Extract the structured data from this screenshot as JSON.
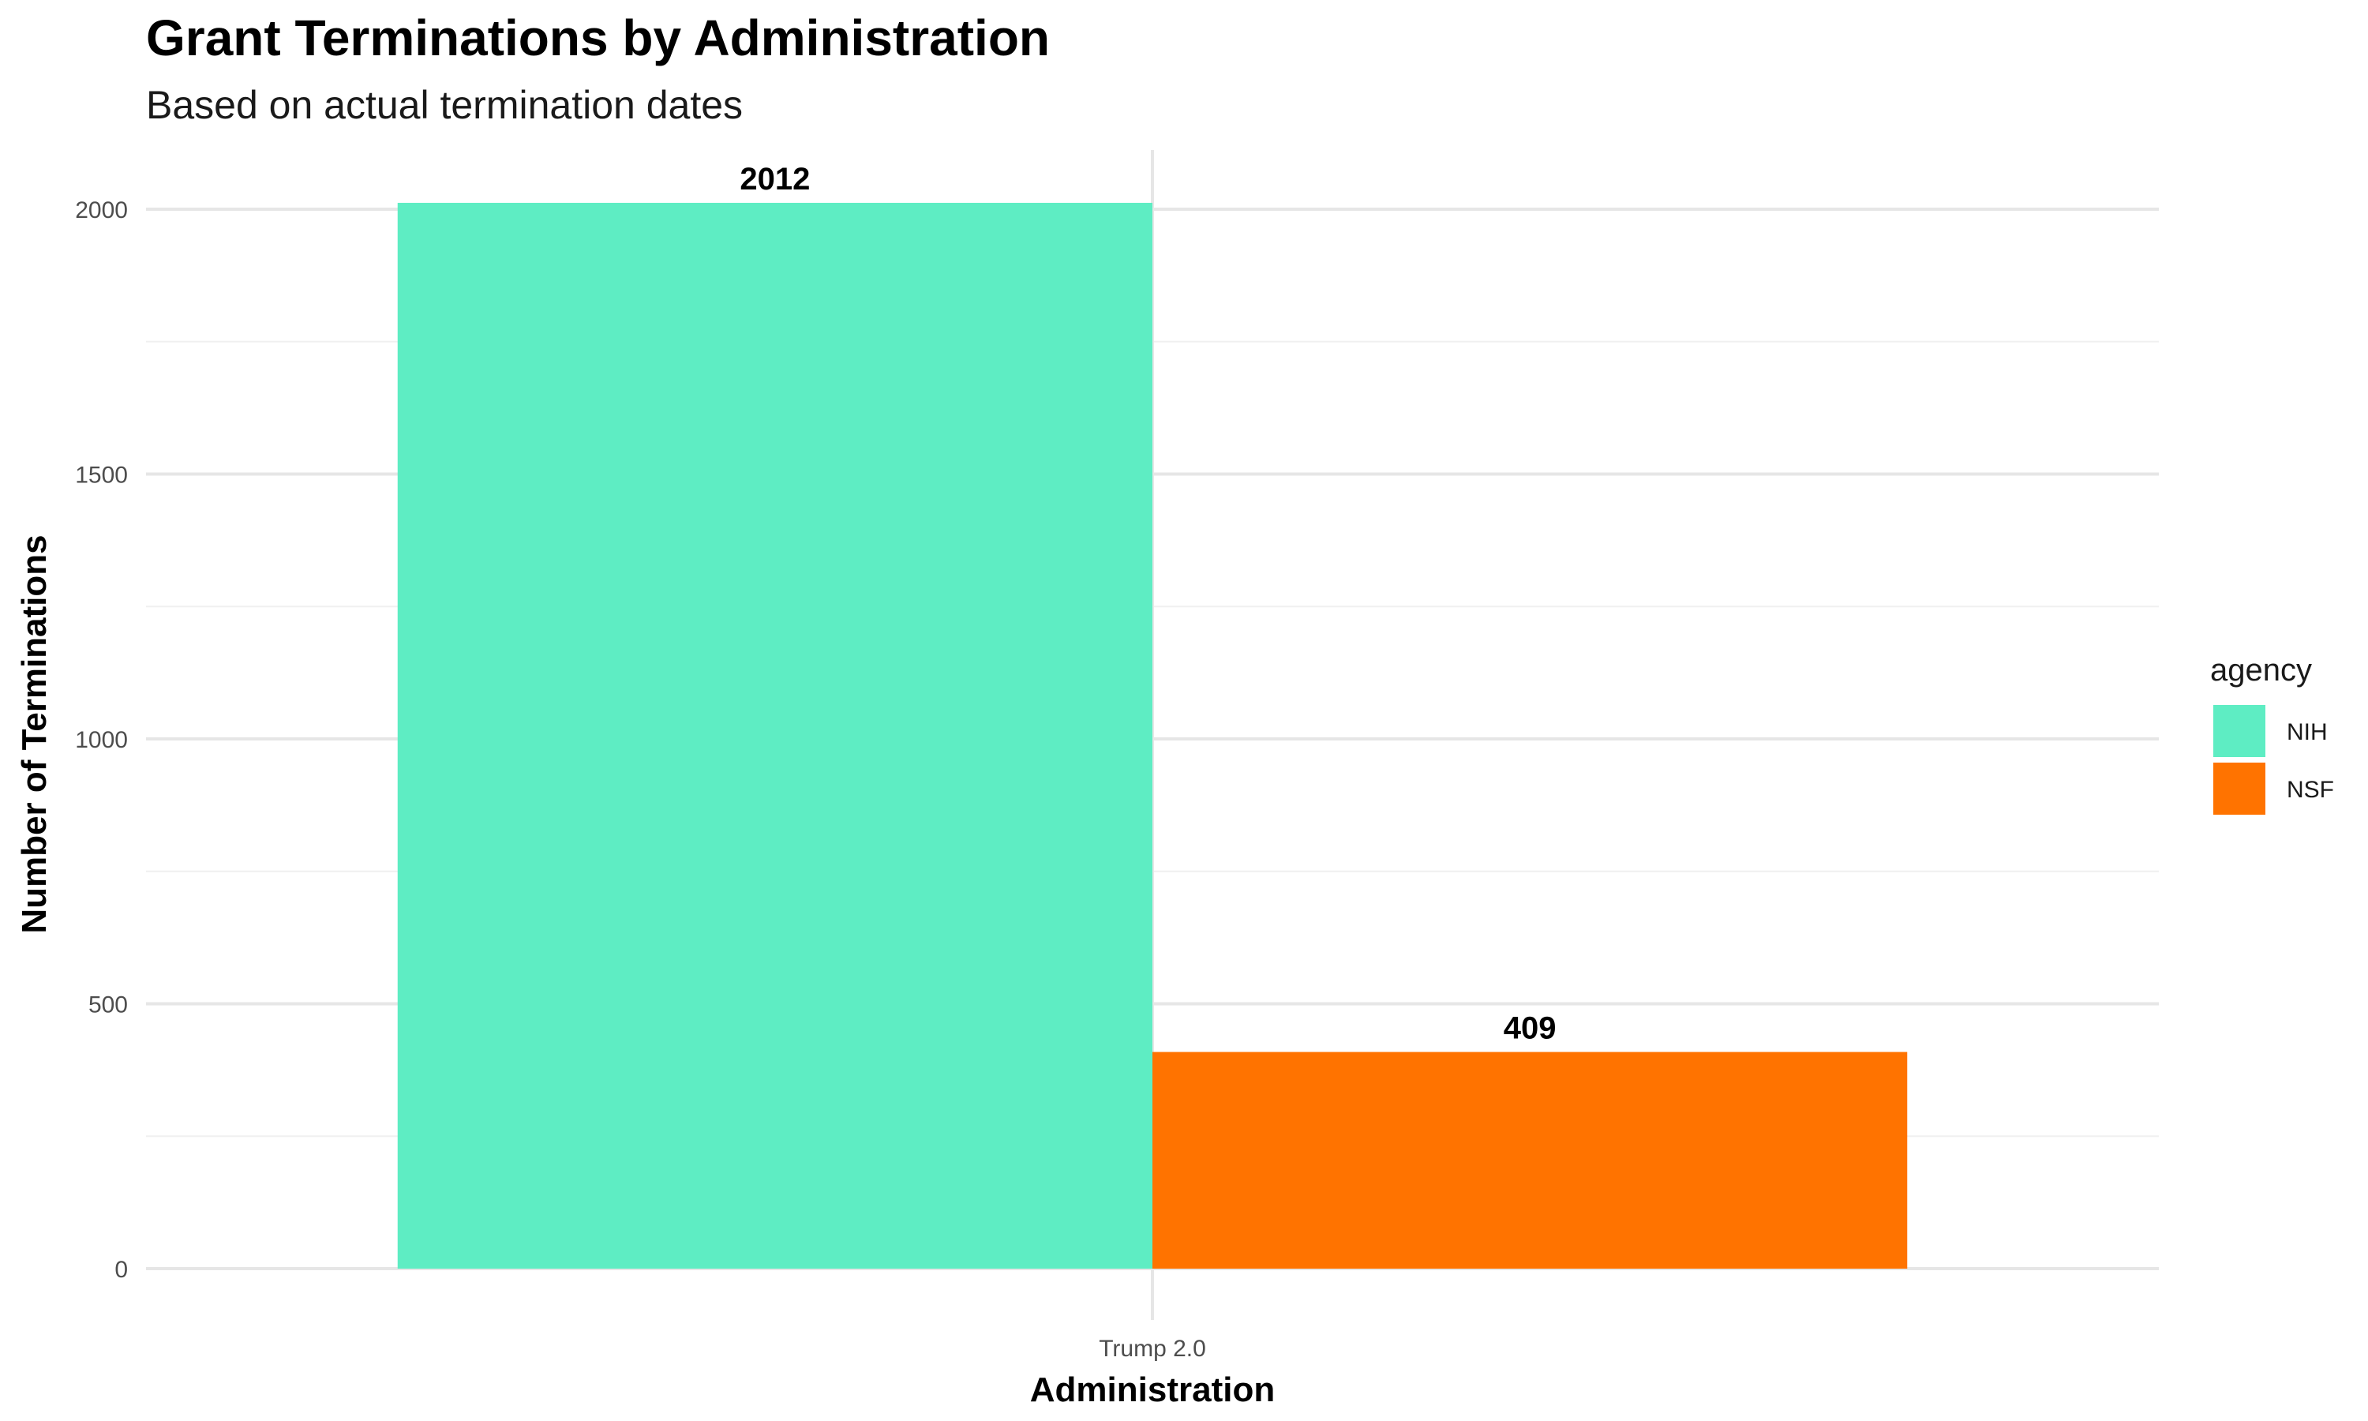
{
  "chart_data": {
    "type": "bar",
    "title": "Grant Terminations by Administration",
    "subtitle": "Based on actual termination dates",
    "xlabel": "Administration",
    "ylabel": "Number of Terminations",
    "categories": [
      "Trump 2.0"
    ],
    "series": [
      {
        "name": "NIH",
        "values": [
          2012
        ],
        "color": "#5EEDC3"
      },
      {
        "name": "NSF",
        "values": [
          409
        ],
        "color": "#FF7300"
      }
    ],
    "ylim": [
      0,
      2100
    ],
    "yticks": [
      0,
      500,
      1000,
      1500,
      2000
    ],
    "grid": true,
    "legend": {
      "title": "agency",
      "position": "right"
    }
  }
}
